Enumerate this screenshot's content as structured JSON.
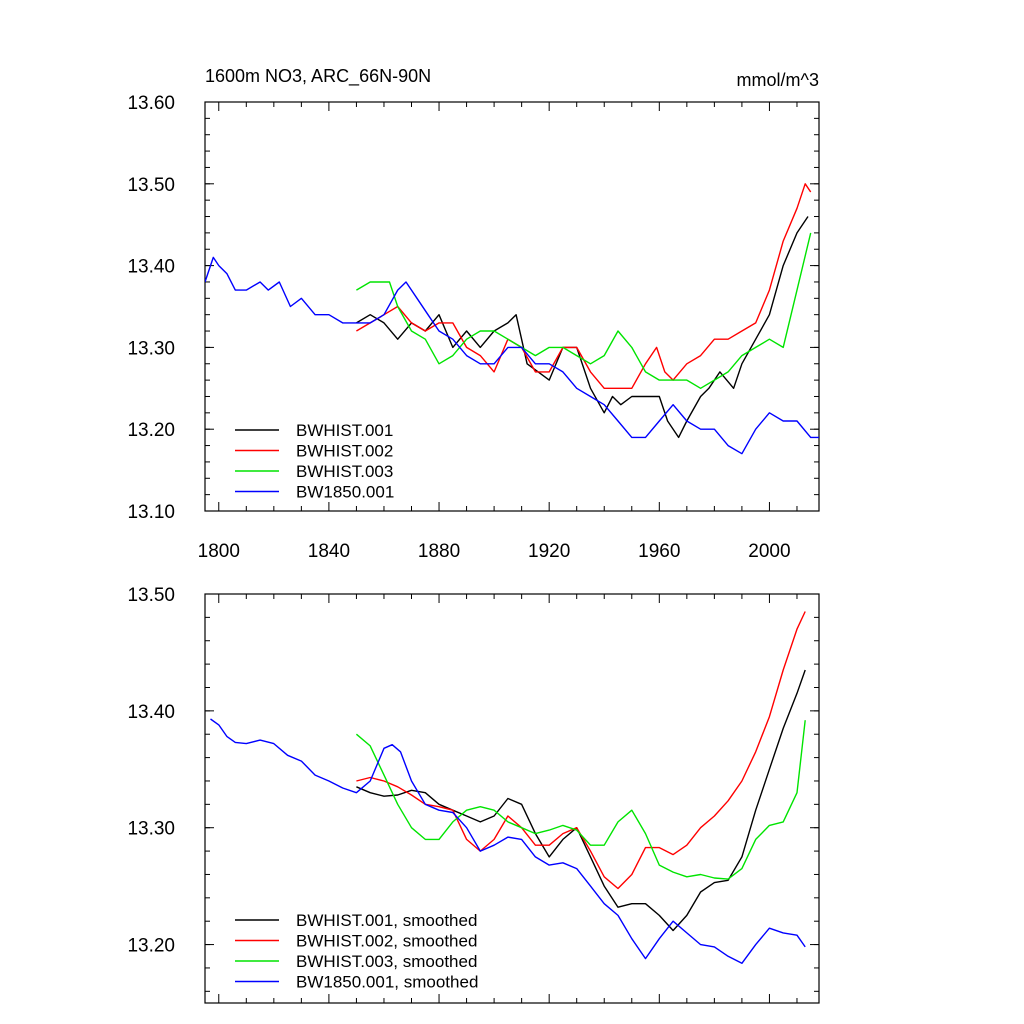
{
  "chart_data": [
    {
      "type": "line",
      "title": "1600m NO3, ARC_66N-90N",
      "units": "mmol/m^3",
      "xlim": [
        1795,
        2018
      ],
      "ylim": [
        13.1,
        13.6
      ],
      "x_ticks": [
        "1800",
        "1840",
        "1880",
        "1920",
        "1960",
        "2000"
      ],
      "y_ticks": [
        "13.10",
        "13.20",
        "13.30",
        "13.40",
        "13.50",
        "13.60"
      ],
      "legend_position": "bottom-left",
      "series": [
        {
          "name": "BWHIST.001",
          "color": "#000000",
          "x": [
            1850,
            1855,
            1860,
            1865,
            1870,
            1875,
            1880,
            1885,
            1890,
            1895,
            1900,
            1905,
            1908,
            1912,
            1916,
            1920,
            1925,
            1930,
            1935,
            1940,
            1943,
            1946,
            1950,
            1955,
            1960,
            1963,
            1967,
            1970,
            1975,
            1978,
            1982,
            1987,
            1990,
            1995,
            2000,
            2005,
            2010,
            2014
          ],
          "y": [
            13.33,
            13.34,
            13.33,
            13.31,
            13.33,
            13.32,
            13.34,
            13.3,
            13.32,
            13.3,
            13.32,
            13.33,
            13.34,
            13.28,
            13.27,
            13.26,
            13.3,
            13.3,
            13.25,
            13.22,
            13.24,
            13.23,
            13.24,
            13.24,
            13.24,
            13.21,
            13.19,
            13.21,
            13.24,
            13.25,
            13.27,
            13.25,
            13.28,
            13.31,
            13.34,
            13.4,
            13.44,
            13.46
          ]
        },
        {
          "name": "BWHIST.002",
          "color": "#ff0000",
          "x": [
            1850,
            1855,
            1860,
            1865,
            1870,
            1875,
            1880,
            1885,
            1890,
            1895,
            1900,
            1905,
            1910,
            1915,
            1920,
            1925,
            1930,
            1935,
            1940,
            1945,
            1950,
            1955,
            1959,
            1962,
            1965,
            1970,
            1975,
            1980,
            1985,
            1990,
            1995,
            2000,
            2005,
            2010,
            2013,
            2015
          ],
          "y": [
            13.32,
            13.33,
            13.34,
            13.35,
            13.33,
            13.32,
            13.33,
            13.33,
            13.3,
            13.29,
            13.27,
            13.31,
            13.3,
            13.27,
            13.27,
            13.3,
            13.3,
            13.27,
            13.25,
            13.25,
            13.25,
            13.28,
            13.3,
            13.27,
            13.26,
            13.28,
            13.29,
            13.31,
            13.31,
            13.32,
            13.33,
            13.37,
            13.43,
            13.47,
            13.5,
            13.49
          ]
        },
        {
          "name": "BWHIST.003",
          "color": "#00e400",
          "x": [
            1850,
            1855,
            1858,
            1862,
            1865,
            1870,
            1875,
            1880,
            1885,
            1890,
            1895,
            1900,
            1905,
            1910,
            1915,
            1920,
            1925,
            1930,
            1935,
            1940,
            1945,
            1950,
            1955,
            1960,
            1965,
            1970,
            1975,
            1980,
            1985,
            1990,
            1995,
            2000,
            2005,
            2010,
            2015
          ],
          "y": [
            13.37,
            13.38,
            13.38,
            13.38,
            13.35,
            13.32,
            13.31,
            13.28,
            13.29,
            13.31,
            13.32,
            13.32,
            13.31,
            13.3,
            13.29,
            13.3,
            13.3,
            13.29,
            13.28,
            13.29,
            13.32,
            13.3,
            13.27,
            13.26,
            13.26,
            13.26,
            13.25,
            13.26,
            13.27,
            13.29,
            13.3,
            13.31,
            13.3,
            13.37,
            13.44
          ]
        },
        {
          "name": "BW1850.001",
          "color": "#0000ff",
          "x": [
            1795,
            1798,
            1800,
            1803,
            1806,
            1810,
            1815,
            1818,
            1822,
            1826,
            1830,
            1835,
            1840,
            1845,
            1850,
            1855,
            1860,
            1865,
            1868,
            1872,
            1876,
            1880,
            1885,
            1890,
            1895,
            1900,
            1905,
            1910,
            1915,
            1920,
            1925,
            1930,
            1935,
            1940,
            1945,
            1950,
            1955,
            1960,
            1965,
            1970,
            1975,
            1980,
            1985,
            1990,
            1995,
            2000,
            2005,
            2010,
            2015,
            2018
          ],
          "y": [
            13.38,
            13.41,
            13.4,
            13.39,
            13.37,
            13.37,
            13.38,
            13.37,
            13.38,
            13.35,
            13.36,
            13.34,
            13.34,
            13.33,
            13.33,
            13.33,
            13.34,
            13.37,
            13.38,
            13.36,
            13.34,
            13.32,
            13.31,
            13.29,
            13.28,
            13.28,
            13.3,
            13.3,
            13.28,
            13.28,
            13.27,
            13.25,
            13.24,
            13.23,
            13.21,
            13.19,
            13.19,
            13.21,
            13.23,
            13.21,
            13.2,
            13.2,
            13.18,
            13.17,
            13.2,
            13.22,
            13.21,
            13.21,
            13.19,
            13.19
          ]
        }
      ]
    },
    {
      "type": "line",
      "xlim": [
        1795,
        2018
      ],
      "ylim": [
        13.15,
        13.5
      ],
      "y_ticks": [
        "13.20",
        "13.30",
        "13.40",
        "13.50"
      ],
      "legend_position": "bottom-left",
      "series": [
        {
          "name": "BWHIST.001, smoothed",
          "color": "#000000",
          "x": [
            1850,
            1855,
            1860,
            1865,
            1870,
            1875,
            1880,
            1885,
            1890,
            1895,
            1900,
            1905,
            1910,
            1915,
            1920,
            1925,
            1930,
            1935,
            1940,
            1945,
            1950,
            1955,
            1960,
            1965,
            1970,
            1975,
            1980,
            1985,
            1990,
            1995,
            2000,
            2005,
            2010,
            2013
          ],
          "y": [
            13.335,
            13.33,
            13.327,
            13.328,
            13.332,
            13.33,
            13.32,
            13.315,
            13.31,
            13.305,
            13.31,
            13.325,
            13.32,
            13.295,
            13.275,
            13.29,
            13.3,
            13.275,
            13.25,
            13.232,
            13.235,
            13.235,
            13.225,
            13.212,
            13.225,
            13.245,
            13.253,
            13.255,
            13.275,
            13.315,
            13.35,
            13.385,
            13.415,
            13.435
          ]
        },
        {
          "name": "BWHIST.002, smoothed",
          "color": "#ff0000",
          "x": [
            1850,
            1855,
            1860,
            1865,
            1870,
            1875,
            1880,
            1885,
            1890,
            1895,
            1900,
            1905,
            1910,
            1915,
            1920,
            1925,
            1930,
            1935,
            1940,
            1945,
            1950,
            1955,
            1960,
            1965,
            1970,
            1975,
            1980,
            1985,
            1990,
            1995,
            2000,
            2005,
            2010,
            2013
          ],
          "y": [
            13.34,
            13.343,
            13.34,
            13.335,
            13.328,
            13.32,
            13.318,
            13.315,
            13.29,
            13.28,
            13.29,
            13.31,
            13.3,
            13.285,
            13.285,
            13.295,
            13.3,
            13.28,
            13.258,
            13.248,
            13.26,
            13.283,
            13.283,
            13.277,
            13.285,
            13.3,
            13.31,
            13.323,
            13.34,
            13.365,
            13.395,
            13.435,
            13.47,
            13.485
          ]
        },
        {
          "name": "BWHIST.003, smoothed",
          "color": "#00e400",
          "x": [
            1850,
            1855,
            1860,
            1865,
            1870,
            1875,
            1880,
            1885,
            1890,
            1895,
            1900,
            1905,
            1910,
            1915,
            1920,
            1925,
            1930,
            1935,
            1940,
            1945,
            1950,
            1955,
            1960,
            1965,
            1970,
            1975,
            1980,
            1985,
            1990,
            1995,
            2000,
            2005,
            2010,
            2013
          ],
          "y": [
            13.38,
            13.37,
            13.345,
            13.32,
            13.3,
            13.29,
            13.29,
            13.305,
            13.315,
            13.318,
            13.315,
            13.305,
            13.3,
            13.295,
            13.298,
            13.302,
            13.298,
            13.285,
            13.285,
            13.305,
            13.315,
            13.295,
            13.268,
            13.262,
            13.258,
            13.26,
            13.257,
            13.256,
            13.265,
            13.29,
            13.302,
            13.305,
            13.33,
            13.392
          ]
        },
        {
          "name": "BW1850.001, smoothed",
          "color": "#0000ff",
          "x": [
            1797,
            1800,
            1803,
            1806,
            1810,
            1815,
            1820,
            1825,
            1830,
            1835,
            1840,
            1845,
            1850,
            1855,
            1860,
            1863,
            1866,
            1870,
            1875,
            1880,
            1885,
            1890,
            1895,
            1900,
            1905,
            1910,
            1915,
            1920,
            1925,
            1930,
            1935,
            1940,
            1945,
            1950,
            1955,
            1960,
            1965,
            1970,
            1975,
            1980,
            1985,
            1990,
            1995,
            2000,
            2005,
            2010,
            2013
          ],
          "y": [
            13.393,
            13.388,
            13.378,
            13.373,
            13.372,
            13.375,
            13.372,
            13.362,
            13.357,
            13.345,
            13.34,
            13.334,
            13.33,
            13.34,
            13.368,
            13.371,
            13.365,
            13.34,
            13.32,
            13.315,
            13.313,
            13.3,
            13.28,
            13.285,
            13.292,
            13.29,
            13.275,
            13.268,
            13.27,
            13.265,
            13.25,
            13.235,
            13.225,
            13.205,
            13.188,
            13.205,
            13.22,
            13.21,
            13.2,
            13.198,
            13.19,
            13.184,
            13.2,
            13.214,
            13.21,
            13.208,
            13.198
          ]
        }
      ]
    }
  ]
}
